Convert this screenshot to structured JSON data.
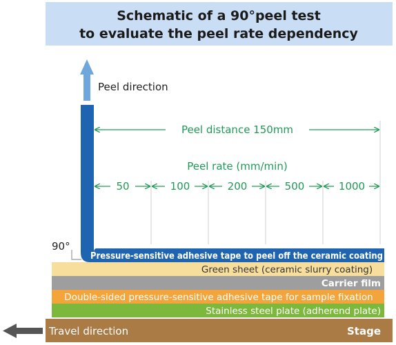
{
  "title": {
    "line1": "Schematic of a 90°peel test",
    "line2": "to evaluate the peel rate dependency"
  },
  "peel_direction_label": "Peel direction",
  "peel_distance_label": "Peel distance 150mm",
  "peel_rate_label": "Peel rate (mm/min)",
  "peel_rates": [
    "50",
    "100",
    "200",
    "500",
    "1000"
  ],
  "angle_label": "90°",
  "travel_direction_label": "Travel direction",
  "layers": {
    "tape": "Pressure-sensitive adhesive tape to peel off the ceramic coating",
    "green_sheet": "Green sheet (ceramic slurry coating)",
    "carrier_film": "Carrier film",
    "double_sided": "Double-sided pressure-sensitive adhesive tape for sample fixation",
    "steel_plate": "Stainless steel plate (adherend plate)",
    "stage": "Stage"
  },
  "colors": {
    "title_bg": "#c9def4",
    "tape_blue": "#1f64b0",
    "arrow_light_blue": "#6fa6dc",
    "green_annot": "#1f9a55",
    "green_sheet": "#f8de9c",
    "carrier_film": "#9e9e9e",
    "double_sided": "#f3a43a",
    "steel_plate": "#7cb83b",
    "stage": "#ab7b45",
    "travel_arrow": "#555555"
  }
}
